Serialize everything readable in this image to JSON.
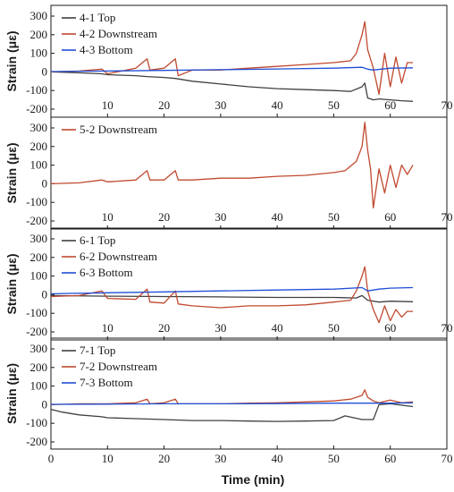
{
  "colors": {
    "top": "#404040",
    "downstream": "#c0492f",
    "bottom": "#1f4fd6",
    "axis": "#1a1a1a"
  },
  "chart_data": [
    {
      "type": "line",
      "panel": 1,
      "xlim": [
        0,
        70
      ],
      "ylim": [
        -200,
        300
      ],
      "yticks": [
        "300",
        "200",
        "100",
        "0",
        "-100",
        "-200"
      ],
      "xticks": [
        "10",
        "20",
        "30",
        "40",
        "50",
        "60",
        "70"
      ],
      "ylabel": "Strain (με)",
      "legend_position": "top-left",
      "series": [
        {
          "name": "4-1 Top",
          "color_key": "top",
          "x": [
            0,
            5,
            9,
            10,
            15,
            17,
            20,
            22,
            25,
            30,
            35,
            40,
            45,
            50,
            53,
            55,
            55.5,
            56,
            57,
            58,
            60,
            62,
            64
          ],
          "y": [
            0,
            -5,
            -10,
            -15,
            -20,
            -25,
            -30,
            -35,
            -50,
            -65,
            -80,
            -90,
            -95,
            -100,
            -105,
            -80,
            -60,
            -140,
            -150,
            -145,
            -150,
            -155,
            -158
          ]
        },
        {
          "name": "4-2 Downstream",
          "color_key": "downstream",
          "x": [
            0,
            5,
            9,
            10,
            15,
            17,
            17.5,
            20,
            22,
            22.5,
            25,
            30,
            35,
            40,
            45,
            50,
            53,
            54,
            55,
            55.5,
            56,
            57,
            58,
            59,
            60,
            61,
            62,
            63,
            64
          ],
          "y": [
            0,
            5,
            15,
            -10,
            20,
            70,
            10,
            20,
            70,
            -20,
            10,
            10,
            20,
            30,
            40,
            50,
            60,
            100,
            200,
            270,
            120,
            20,
            -120,
            100,
            -80,
            80,
            -60,
            50,
            50
          ]
        },
        {
          "name": "4-3 Bottom",
          "color_key": "bottom",
          "x": [
            0,
            10,
            20,
            30,
            40,
            50,
            55,
            56,
            57,
            60,
            64
          ],
          "y": [
            2,
            5,
            8,
            12,
            16,
            20,
            25,
            15,
            10,
            20,
            22
          ]
        }
      ]
    },
    {
      "type": "line",
      "panel": 2,
      "xlim": [
        0,
        70
      ],
      "ylim": [
        -200,
        300
      ],
      "yticks": [
        "300",
        "200",
        "100",
        "0",
        "-100",
        "-200"
      ],
      "xticks": [
        "10",
        "20",
        "30",
        "40",
        "50",
        "60",
        "70"
      ],
      "ylabel": "Strain (με)",
      "legend_position": "top-left",
      "series": [
        {
          "name": "5-2 Downstream",
          "color_key": "downstream",
          "x": [
            0,
            5,
            9,
            10,
            15,
            17,
            17.5,
            20,
            22,
            22.5,
            25,
            30,
            35,
            40,
            45,
            50,
            52,
            54,
            55,
            55.5,
            56,
            56.5,
            57,
            58,
            59,
            60,
            61,
            62,
            63,
            64
          ],
          "y": [
            0,
            5,
            20,
            10,
            20,
            70,
            20,
            20,
            70,
            20,
            20,
            30,
            30,
            40,
            45,
            60,
            70,
            120,
            200,
            330,
            180,
            80,
            -130,
            80,
            -50,
            100,
            -20,
            100,
            50,
            100
          ]
        }
      ]
    },
    {
      "type": "line",
      "panel": 3,
      "xlim": [
        0,
        70
      ],
      "ylim": [
        -200,
        300
      ],
      "yticks": [
        "300",
        "200",
        "100",
        "0",
        "-100",
        "-200"
      ],
      "xticks": [
        "10",
        "20",
        "30",
        "40",
        "50",
        "60",
        "70"
      ],
      "ylabel": "Strain (με)",
      "legend_position": "top-left",
      "series": [
        {
          "name": "6-1 Top",
          "color_key": "top",
          "x": [
            0,
            10,
            20,
            30,
            40,
            50,
            54,
            55,
            56,
            58,
            60,
            64
          ],
          "y": [
            -5,
            -8,
            -10,
            -12,
            -15,
            -15,
            -18,
            -5,
            -30,
            -40,
            -35,
            -38
          ]
        },
        {
          "name": "6-2 Downstream",
          "color_key": "downstream",
          "x": [
            0,
            5,
            9,
            10,
            15,
            17,
            17.5,
            20,
            22,
            22.5,
            25,
            30,
            35,
            40,
            45,
            50,
            53,
            54,
            55,
            55.5,
            56,
            57,
            58,
            59,
            60,
            61,
            62,
            63,
            64
          ],
          "y": [
            -10,
            -5,
            20,
            -20,
            -25,
            30,
            -40,
            -45,
            20,
            -50,
            -60,
            -70,
            -60,
            -60,
            -55,
            -40,
            -30,
            20,
            100,
            150,
            20,
            -80,
            -150,
            -60,
            -140,
            -80,
            -120,
            -90,
            -90
          ]
        },
        {
          "name": "6-3 Bottom",
          "color_key": "bottom",
          "x": [
            0,
            10,
            20,
            30,
            40,
            50,
            55,
            56,
            58,
            60,
            64
          ],
          "y": [
            5,
            10,
            15,
            20,
            25,
            30,
            38,
            20,
            30,
            35,
            38
          ]
        }
      ]
    },
    {
      "type": "line",
      "panel": 4,
      "xlim": [
        0,
        70
      ],
      "ylim": [
        -200,
        300
      ],
      "yticks": [
        "300",
        "200",
        "100",
        "0",
        "-100",
        "-200"
      ],
      "xticks": [
        "0",
        "10",
        "20",
        "30",
        "40",
        "50",
        "60",
        "70"
      ],
      "xlabel": "Time (min)",
      "ylabel": "Strain (με)",
      "legend_position": "top-left",
      "series": [
        {
          "name": "7-1 Top",
          "color_key": "top",
          "x": [
            0,
            2,
            5,
            9,
            10,
            15,
            20,
            25,
            30,
            35,
            40,
            45,
            50,
            52,
            55,
            57,
            57.5,
            58,
            60,
            64
          ],
          "y": [
            -25,
            -40,
            -55,
            -65,
            -70,
            -75,
            -80,
            -85,
            -85,
            -88,
            -90,
            -88,
            -85,
            -60,
            -80,
            -80,
            -40,
            0,
            5,
            -10
          ]
        },
        {
          "name": "7-2 Downstream",
          "color_key": "downstream",
          "x": [
            0,
            5,
            10,
            15,
            17,
            17.5,
            20,
            22,
            22.5,
            25,
            30,
            35,
            40,
            45,
            50,
            53,
            55,
            55.5,
            56,
            57,
            58,
            60,
            62,
            64
          ],
          "y": [
            0,
            5,
            5,
            10,
            30,
            5,
            10,
            30,
            5,
            5,
            5,
            8,
            10,
            15,
            20,
            30,
            50,
            80,
            40,
            20,
            10,
            25,
            10,
            15
          ]
        },
        {
          "name": "7-3 Bottom",
          "color_key": "bottom",
          "x": [
            0,
            10,
            20,
            30,
            40,
            50,
            60,
            64
          ],
          "y": [
            2,
            3,
            5,
            5,
            6,
            8,
            8,
            10
          ]
        }
      ]
    }
  ]
}
